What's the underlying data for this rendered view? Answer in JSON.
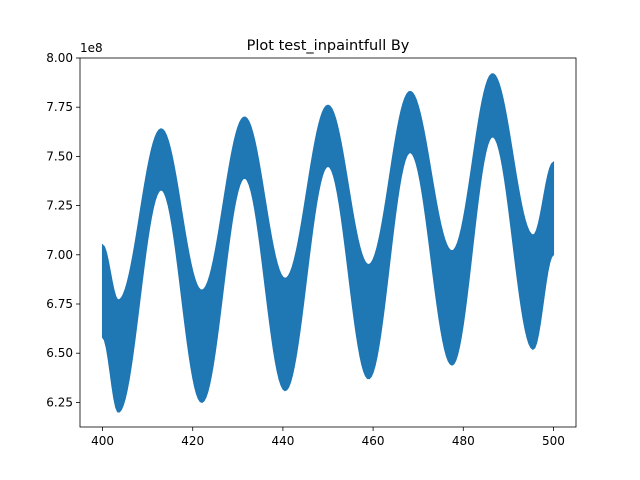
{
  "chart_data": {
    "type": "area",
    "title": "Plot test_inpaintfull By",
    "xlabel": "",
    "ylabel": "",
    "y_offset_label": "1e8",
    "xlim": [
      395,
      505
    ],
    "ylim": [
      6.125,
      8.0
    ],
    "y_scale_factor": 100000000,
    "grid": false,
    "legend": "none",
    "x_ticks": [
      400,
      420,
      440,
      460,
      480,
      500
    ],
    "y_ticks": [
      6.25,
      6.5,
      6.75,
      7.0,
      7.25,
      7.5,
      7.75,
      8.0
    ],
    "x_tick_labels": [
      "400",
      "420",
      "440",
      "460",
      "480",
      "500"
    ],
    "y_tick_labels": [
      "6.25",
      "6.50",
      "6.75",
      "7.00",
      "7.25",
      "7.50",
      "7.75",
      "8.00"
    ],
    "series": [
      {
        "color": "#1f77b4",
        "x": [
          400,
          403.5,
          413,
          422,
          431.5,
          440.5,
          450,
          459,
          468.2,
          477.5,
          486.5,
          495.5,
          500
        ],
        "upper": [
          7.05,
          6.77,
          7.64,
          6.82,
          7.7,
          6.88,
          7.76,
          6.95,
          7.83,
          7.02,
          7.92,
          7.1,
          7.47
        ],
        "lower": [
          6.58,
          6.2,
          7.33,
          6.25,
          7.39,
          6.31,
          7.45,
          6.37,
          7.52,
          6.44,
          7.6,
          6.52,
          7.0
        ]
      }
    ]
  }
}
